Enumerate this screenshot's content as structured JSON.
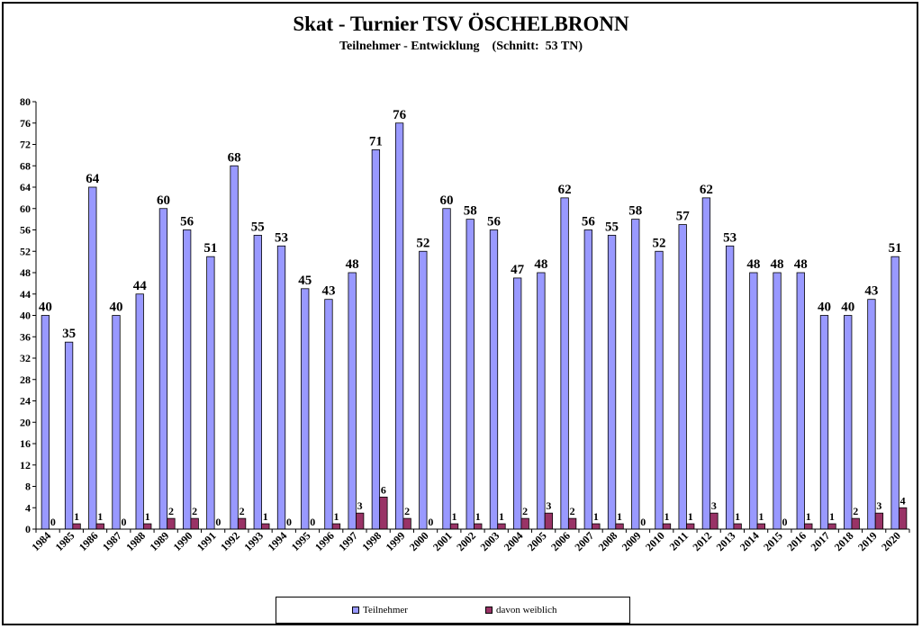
{
  "chart_data": {
    "type": "bar",
    "title": "Skat - Turnier  TSV ÖSCHELBRONN",
    "subtitle": "Teilnehmer - Entwicklung    (Schnitt:  53 TN)",
    "categories": [
      "1984",
      "1985",
      "1986",
      "1987",
      "1988",
      "1989",
      "1990",
      "1991",
      "1992",
      "1993",
      "1994",
      "1995",
      "1996",
      "1997",
      "1998",
      "1999",
      "2000",
      "2001",
      "2002",
      "2003",
      "2004",
      "2005",
      "2006",
      "2007",
      "2008",
      "2009",
      "2010",
      "2011",
      "2012",
      "2013",
      "2014",
      "2015",
      "2016",
      "2017",
      "2018",
      "2019",
      "2020"
    ],
    "series": [
      {
        "name": "Teilnehmer",
        "color": "#9999ff",
        "values": [
          40,
          35,
          64,
          40,
          44,
          60,
          56,
          51,
          68,
          55,
          53,
          45,
          43,
          48,
          71,
          76,
          52,
          60,
          58,
          56,
          47,
          48,
          62,
          56,
          55,
          58,
          52,
          57,
          62,
          53,
          48,
          48,
          48,
          40,
          40,
          43,
          51
        ]
      },
      {
        "name": "davon weiblich",
        "color": "#993366",
        "values": [
          0,
          1,
          1,
          0,
          1,
          2,
          2,
          0,
          2,
          1,
          0,
          0,
          1,
          3,
          6,
          2,
          0,
          1,
          1,
          1,
          2,
          3,
          2,
          1,
          1,
          0,
          1,
          1,
          3,
          1,
          1,
          0,
          1,
          1,
          2,
          3,
          4
        ]
      }
    ],
    "ylim": [
      0,
      80
    ],
    "yticks": [
      0,
      4,
      8,
      12,
      16,
      20,
      24,
      28,
      32,
      36,
      40,
      44,
      48,
      52,
      56,
      60,
      64,
      68,
      72,
      76,
      80
    ],
    "grid": false,
    "legend_position": "bottom",
    "xlabel": "",
    "ylabel": ""
  }
}
